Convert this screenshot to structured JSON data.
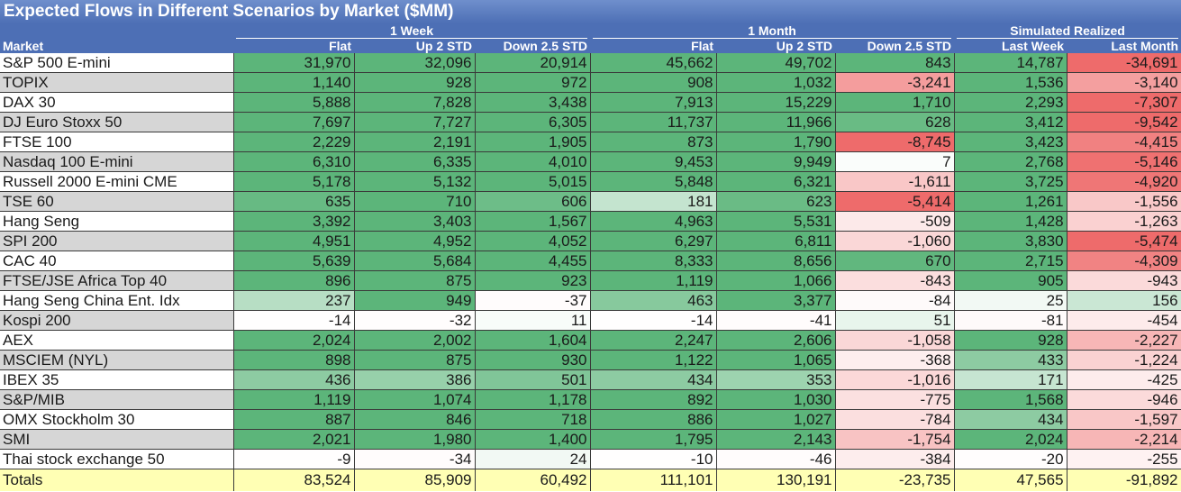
{
  "title": "Expected Flows in Different Scenarios by Market ($MM)",
  "chart_data": {
    "type": "table",
    "title": "Expected Flows in Different Scenarios by Market ($MM)",
    "groups": [
      {
        "label": "",
        "span": 1
      },
      {
        "label": "1 Week",
        "span": 3
      },
      {
        "label": "1 Month",
        "span": 3
      },
      {
        "label": "Simulated Realized",
        "span": 2
      }
    ],
    "columns": [
      "Market",
      "Flat",
      "Up 2 STD",
      "Down 2.5 STD",
      "Flat",
      "Up 2 STD",
      "Down 2.5 STD",
      "Last Week",
      "Last Month"
    ],
    "rows": [
      {
        "market": "S&P 500 E-mini",
        "values": [
          31970,
          32096,
          20914,
          45662,
          49702,
          843,
          14787,
          -34691
        ]
      },
      {
        "market": "TOPIX",
        "values": [
          1140,
          928,
          972,
          908,
          1032,
          -3241,
          1536,
          -3140
        ]
      },
      {
        "market": "DAX 30",
        "values": [
          5888,
          7828,
          3438,
          7913,
          15229,
          1710,
          2293,
          -7307
        ]
      },
      {
        "market": "DJ Euro Stoxx 50",
        "values": [
          7697,
          7727,
          6305,
          11737,
          11966,
          628,
          3412,
          -9542
        ]
      },
      {
        "market": "FTSE 100",
        "values": [
          2229,
          2191,
          1905,
          873,
          1790,
          -8745,
          3423,
          -4415
        ]
      },
      {
        "market": "Nasdaq 100 E-mini",
        "values": [
          6310,
          6335,
          4010,
          9453,
          9949,
          7,
          2768,
          -5146
        ]
      },
      {
        "market": "Russell 2000 E-mini CME",
        "values": [
          5178,
          5132,
          5015,
          5848,
          6321,
          -1611,
          3725,
          -4920
        ]
      },
      {
        "market": "TSE 60",
        "values": [
          635,
          710,
          606,
          181,
          623,
          -5414,
          1261,
          -1556
        ]
      },
      {
        "market": "Hang Seng",
        "values": [
          3392,
          3403,
          1567,
          4963,
          5531,
          -509,
          1428,
          -1263
        ]
      },
      {
        "market": "SPI 200",
        "values": [
          4951,
          4952,
          4052,
          6297,
          6811,
          -1060,
          3830,
          -5474
        ]
      },
      {
        "market": "CAC 40",
        "values": [
          5639,
          5684,
          4455,
          8333,
          8656,
          670,
          2715,
          -4309
        ]
      },
      {
        "market": "FTSE/JSE Africa Top 40",
        "values": [
          896,
          875,
          923,
          1119,
          1066,
          -843,
          905,
          -943
        ]
      },
      {
        "market": "Hang Seng China Ent. Idx",
        "values": [
          237,
          949,
          -37,
          463,
          3377,
          -84,
          25,
          156
        ]
      },
      {
        "market": "Kospi 200",
        "values": [
          -14,
          -32,
          11,
          -14,
          -41,
          51,
          -81,
          -454
        ]
      },
      {
        "market": "AEX",
        "values": [
          2024,
          2002,
          1604,
          2247,
          2606,
          -1058,
          928,
          -2227
        ]
      },
      {
        "market": "MSCIEM (NYL)",
        "values": [
          898,
          875,
          930,
          1122,
          1065,
          -368,
          433,
          -1224
        ]
      },
      {
        "market": "IBEX 35",
        "values": [
          436,
          386,
          501,
          434,
          353,
          -1016,
          171,
          -425
        ]
      },
      {
        "market": "S&P/MIB",
        "values": [
          1119,
          1074,
          1178,
          892,
          1030,
          -775,
          1568,
          -946
        ]
      },
      {
        "market": "OMX Stockholm 30",
        "values": [
          887,
          846,
          718,
          886,
          1027,
          -784,
          434,
          -1597
        ]
      },
      {
        "market": "SMI",
        "values": [
          2021,
          1980,
          1400,
          1795,
          2143,
          -1754,
          2024,
          -2214
        ]
      },
      {
        "market": "Thai stock exchange 50",
        "values": [
          -9,
          -34,
          24,
          -10,
          -46,
          -384,
          -20,
          -255
        ]
      }
    ],
    "totals": {
      "label": "Totals",
      "values": [
        83524,
        85909,
        60492,
        111101,
        130191,
        -23735,
        47565,
        -91892
      ]
    },
    "colors": {
      "header": "#4d6fb5",
      "positive_strong": "#5cb57a",
      "negative_strong": "#ee6b6b",
      "neutral": "#ffffff",
      "totals_row": "#ffffb4"
    }
  }
}
